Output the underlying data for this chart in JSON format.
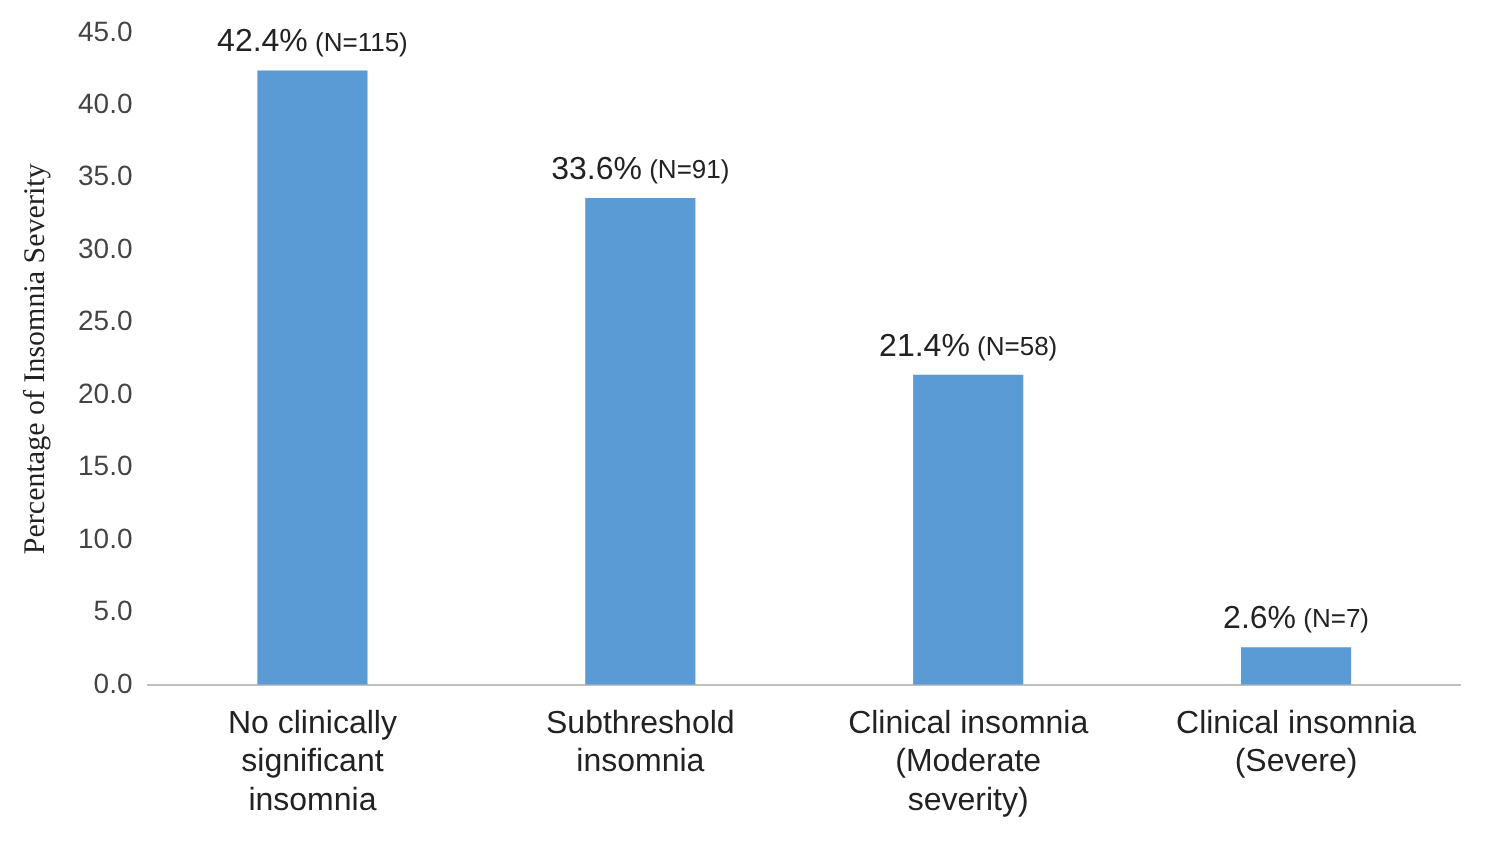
{
  "chart_data": {
    "type": "bar",
    "ylabel": "Percentage of Insomnia Severity",
    "categories": [
      "No clinically significant insomnia",
      "Subthreshold insomnia",
      "Clinical insomnia (Moderate severity)",
      "Clinical insomnia (Severe)"
    ],
    "values": [
      42.4,
      33.6,
      21.4,
      2.6
    ],
    "color": "#5b9bd5",
    "value_labels": [
      "42.4% (N=115)",
      "33.6% (N=91)",
      "21.4% (N=58)",
      "2.6% (N=7)"
    ],
    "ylim": [
      0,
      45
    ],
    "yticks": [
      {
        "value": 0,
        "label": "0.0"
      },
      {
        "value": 5,
        "label": "5.0"
      },
      {
        "value": 10,
        "label": "10.0"
      },
      {
        "value": 15,
        "label": "15.0"
      },
      {
        "value": 20,
        "label": "20.0"
      },
      {
        "value": 25,
        "label": "25.0"
      },
      {
        "value": 30,
        "label": "30.0"
      },
      {
        "value": 35,
        "label": "35.0"
      },
      {
        "value": 40,
        "label": "40.0"
      },
      {
        "value": 45,
        "label": "45.0"
      }
    ],
    "grid": false,
    "legend": false
  }
}
